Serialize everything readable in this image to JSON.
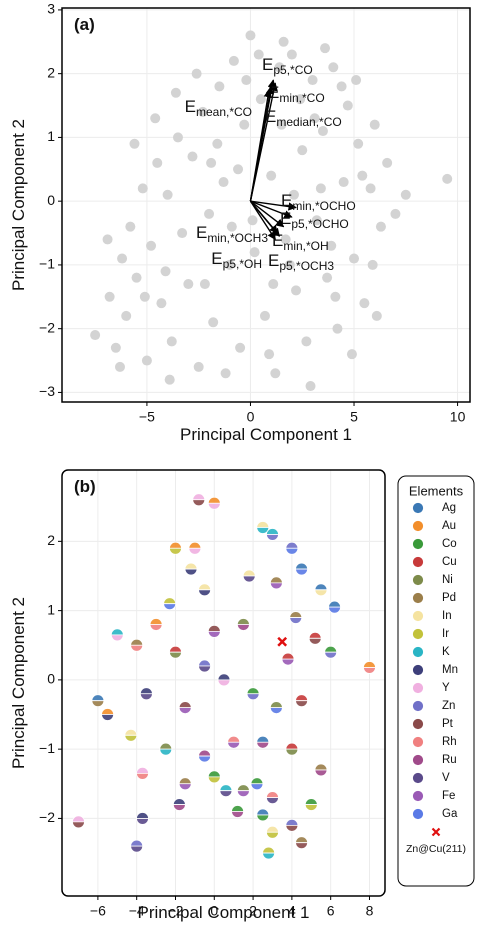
{
  "chart_data": [
    {
      "type": "scatter",
      "panel_label": "(a)",
      "x_label": "Principal Component 1",
      "y_label": "Principal Component 2",
      "xlim": [
        -9.1,
        10.6
      ],
      "ylim": [
        -3.15,
        3.03
      ],
      "grid": true,
      "color": "#d3d3d3",
      "xticks": [
        {
          "value": -5,
          "label": "−5"
        },
        0,
        5,
        10
      ],
      "yticks": [
        {
          "value": -3,
          "label": "−3"
        },
        {
          "value": -2,
          "label": "−2"
        },
        {
          "value": -1,
          "label": "−1"
        },
        0,
        1,
        2,
        3
      ],
      "x": [
        -7.5,
        -6.8,
        -6.5,
        -6.2,
        -6,
        -5.8,
        -5.5,
        -5.2,
        -5,
        -4.8,
        -4.5,
        -4.3,
        -4,
        -3.8,
        -3.5,
        -3.3,
        -3,
        -2.8,
        -2.5,
        -2.3,
        -2,
        -1.8,
        -1.5,
        -1.3,
        -1,
        -0.8,
        -0.5,
        -0.3,
        0,
        0.2,
        0.5,
        0.7,
        1,
        1.2,
        1.5,
        1.7,
        2,
        2.2,
        2.5,
        2.7,
        3,
        3.2,
        3.5,
        3.7,
        4,
        4.2,
        4.5,
        4.7,
        5,
        5.2,
        5.5,
        5.8,
        6,
        6.3,
        6.6,
        7,
        7.5,
        9.5,
        -6.9,
        -5.6,
        -4.6,
        -3.6,
        -2.6,
        -1.6,
        -0.6,
        0.4,
        1.4,
        2.4,
        3.4,
        4.4,
        5.4,
        -6.3,
        -3.9,
        -1.2,
        0.9,
        2.9,
        4.9,
        -2.2,
        0.1,
        1.9,
        3.9,
        5.9,
        -4.1,
        -1.9,
        -0.9,
        1.1,
        3.1,
        4.1,
        6.1,
        -5.1,
        2.1,
        -0.2,
        1.6,
        3.6,
        5.1
      ],
      "y": [
        -2.1,
        -1.5,
        -2.3,
        -0.9,
        -1.8,
        -0.4,
        -1.2,
        0.2,
        -2.5,
        -0.7,
        0.6,
        -1.6,
        0.1,
        -2.2,
        1,
        -0.5,
        -1.3,
        0.7,
        -2.6,
        1.4,
        -0.2,
        -1.9,
        1.8,
        0.3,
        -1,
        2.2,
        -2.3,
        1.2,
        2.6,
        -0.8,
        1.6,
        -1.8,
        0.4,
        -2.7,
        1.2,
        -0.6,
        2.3,
        -1.4,
        0.8,
        -2.2,
        1.9,
        -0.3,
        1.1,
        -1.2,
        2.1,
        -2,
        0.3,
        1.5,
        -0.9,
        0.9,
        -1.6,
        0.2,
        1.2,
        -0.4,
        0.6,
        -0.2,
        0.1,
        0.35,
        -0.6,
        0.9,
        1.3,
        1.7,
        2,
        0.9,
        0.5,
        2.3,
        2.1,
        1.6,
        0.2,
        1.8,
        0.4,
        -2.6,
        -2.8,
        -2.7,
        -2.4,
        -2.9,
        -2.4,
        -1.3,
        -0.3,
        -1,
        -0.7,
        -1,
        -1.1,
        0.6,
        -0.4,
        -1.3,
        1.3,
        -1.5,
        -1.8,
        -1.5,
        0.1,
        1.9,
        2.5,
        2.4,
        1.9
      ],
      "vectors": [
        {
          "main": "E",
          "sub": "p5,*CO",
          "x": 1.1,
          "y": 1.9
        },
        {
          "main": "E",
          "sub": "min,*CO",
          "x": 1.2,
          "y": 1.85
        },
        {
          "main": "E",
          "sub": "mean,*CO",
          "x": 0.9,
          "y": 1.75
        },
        {
          "main": "E",
          "sub": "median,*CO",
          "x": 1.0,
          "y": 1.8
        },
        {
          "main": "E",
          "sub": "min,*OCHO",
          "x": 2.2,
          "y": -0.1
        },
        {
          "main": "E",
          "sub": "p5,*OCHO",
          "x": 2.0,
          "y": -0.25
        },
        {
          "main": "E",
          "sub": "min,*OH",
          "x": 1.6,
          "y": -0.4
        },
        {
          "main": "E",
          "sub": "p5,*OCH3",
          "x": 1.4,
          "y": -0.55
        },
        {
          "main": "E",
          "sub": "min,*OCH3",
          "x": 1.3,
          "y": -0.5
        },
        {
          "main": "E",
          "sub": "p5,*OH",
          "x": 1.2,
          "y": -0.6
        }
      ]
    },
    {
      "type": "scatter",
      "panel_label": "(b)",
      "x_label": "Principal Component 1",
      "y_label": "Principal Component 2",
      "xlim": [
        -7.85,
        8.8
      ],
      "ylim": [
        -3.12,
        3.03
      ],
      "grid": true,
      "legend_title": "Elements",
      "legend": "right",
      "xticks": [
        {
          "value": -6,
          "label": "−6"
        },
        {
          "value": -4,
          "label": "−4"
        },
        {
          "value": -2,
          "label": "−2"
        },
        0,
        2,
        4,
        6,
        8
      ],
      "yticks": [
        {
          "value": -2,
          "label": "−2"
        },
        {
          "value": -1,
          "label": "−1"
        },
        0,
        1,
        2
      ],
      "series": [
        {
          "name": "Ag",
          "color": "#3a78b5",
          "x": [
            4.5,
            5.5,
            6.2,
            -6,
            2.5,
            2.5
          ],
          "y": [
            1.6,
            1.3,
            1.05,
            -0.3,
            -0.9,
            -1.95
          ]
        },
        {
          "name": "Au",
          "color": "#f28e2b",
          "x": [
            0,
            -2,
            -1,
            -3,
            8,
            -5.5
          ],
          "y": [
            2.55,
            1.9,
            1.9,
            0.8,
            0.18,
            -0.5
          ]
        },
        {
          "name": "Co",
          "color": "#3a9a3a",
          "x": [
            6,
            2,
            0,
            2.2,
            5,
            1.2,
            2.5
          ],
          "y": [
            0.4,
            -0.2,
            -1.4,
            -1.5,
            -1.8,
            -1.9,
            -1.95
          ]
        },
        {
          "name": "Cu",
          "color": "#c73a3a",
          "x": [
            -2,
            3.8,
            5.2,
            4.5,
            4
          ],
          "y": [
            0.4,
            0.3,
            0.6,
            -0.3,
            -1
          ]
        },
        {
          "name": "Ni",
          "color": "#7d8b4a",
          "x": [
            -2,
            1.5,
            3.2,
            -2.5,
            4,
            1.5
          ],
          "y": [
            0.4,
            0.8,
            -0.4,
            -1,
            -1,
            -1.6
          ]
        },
        {
          "name": "Pd",
          "color": "#9b7e4a",
          "x": [
            3.2,
            -4,
            -6,
            5.5,
            -1.5,
            4.5,
            4.2
          ],
          "y": [
            1.4,
            0.5,
            -0.3,
            -1.3,
            -1.5,
            -2.35,
            0.9
          ]
        },
        {
          "name": "In",
          "color": "#f5e3a0",
          "x": [
            2.5,
            5.5,
            1.8,
            -0.5,
            -4.3,
            3,
            -1.2
          ],
          "y": [
            2.2,
            1.3,
            1.5,
            1.3,
            -0.8,
            -2.2,
            1.6
          ]
        },
        {
          "name": "Ir",
          "color": "#c2c23a",
          "x": [
            -2,
            -2.3,
            -4.3,
            0,
            5,
            3,
            2.8
          ],
          "y": [
            1.9,
            1.1,
            -0.8,
            -1.4,
            -1.8,
            -2.2,
            -2.5
          ]
        },
        {
          "name": "K",
          "color": "#2ab5c5",
          "x": [
            2.5,
            3,
            -5,
            -2.5,
            2.8,
            0.6
          ],
          "y": [
            2.2,
            2.1,
            0.65,
            -1,
            -2.5,
            -1.6
          ]
        },
        {
          "name": "Mn",
          "color": "#3d3f7a",
          "x": [
            -0.5,
            -5.5,
            -3.5,
            0.5,
            -1.8,
            -3.7,
            -1.2
          ],
          "y": [
            1.3,
            -0.5,
            -0.2,
            0,
            -1.8,
            -2,
            1.6
          ]
        },
        {
          "name": "Y",
          "color": "#f0b0e0",
          "x": [
            -0.8,
            0,
            -1,
            -5,
            0.5,
            -3.7,
            -7
          ],
          "y": [
            2.6,
            2.55,
            1.9,
            0.65,
            0,
            -1.35,
            -2.05
          ]
        },
        {
          "name": "Zn",
          "color": "#7070c8",
          "x": [
            3,
            4,
            6,
            2,
            4,
            -4,
            -0.5,
            4.2
          ],
          "y": [
            2.1,
            1.9,
            0.4,
            -0.2,
            -2.1,
            -2.4,
            0.2,
            0.9
          ]
        },
        {
          "name": "Pt",
          "color": "#8a4a4a",
          "x": [
            -0.8,
            0,
            5.2,
            -1.5,
            4.5,
            4,
            -7,
            4.5
          ],
          "y": [
            2.6,
            0.7,
            0.6,
            -0.4,
            -0.3,
            -2.1,
            -2.05,
            -2.35
          ]
        },
        {
          "name": "Rh",
          "color": "#f08080",
          "x": [
            -3,
            -4,
            8,
            1,
            -3.7,
            3
          ],
          "y": [
            0.8,
            0.5,
            0.18,
            -0.9,
            -1.35,
            -1.7
          ]
        },
        {
          "name": "Ru",
          "color": "#a04a8a",
          "x": [
            1.5,
            -0.5,
            2.5,
            5.5,
            -1.8,
            1.2
          ],
          "y": [
            0.8,
            -1.1,
            -0.9,
            -1.3,
            -1.8,
            -1.9
          ]
        },
        {
          "name": "V",
          "color": "#5a4a8a",
          "x": [
            1.8,
            -3.5,
            3,
            -3.7,
            -4,
            0.6,
            -0.5
          ],
          "y": [
            1.5,
            -0.2,
            -1.7,
            -2,
            -2.4,
            -1.6,
            0.2
          ]
        },
        {
          "name": "Fe",
          "color": "#9a5ab5",
          "x": [
            3.2,
            0,
            3.8,
            -1.5,
            1,
            -1.5,
            1.5
          ],
          "y": [
            1.4,
            0.7,
            0.3,
            -0.4,
            -0.9,
            -1.5,
            -1.6
          ]
        },
        {
          "name": "Ga",
          "color": "#5a7ae6",
          "x": [
            4,
            4.5,
            6.2,
            -2.3,
            3.2,
            -0.5,
            2.2
          ],
          "y": [
            1.9,
            1.6,
            1.05,
            1.1,
            -0.4,
            -1.1,
            -1.5
          ]
        }
      ],
      "highlight": {
        "name": "Zn@Cu(211)",
        "x": 3.5,
        "y": 0.55,
        "color": "#e01010"
      }
    }
  ]
}
